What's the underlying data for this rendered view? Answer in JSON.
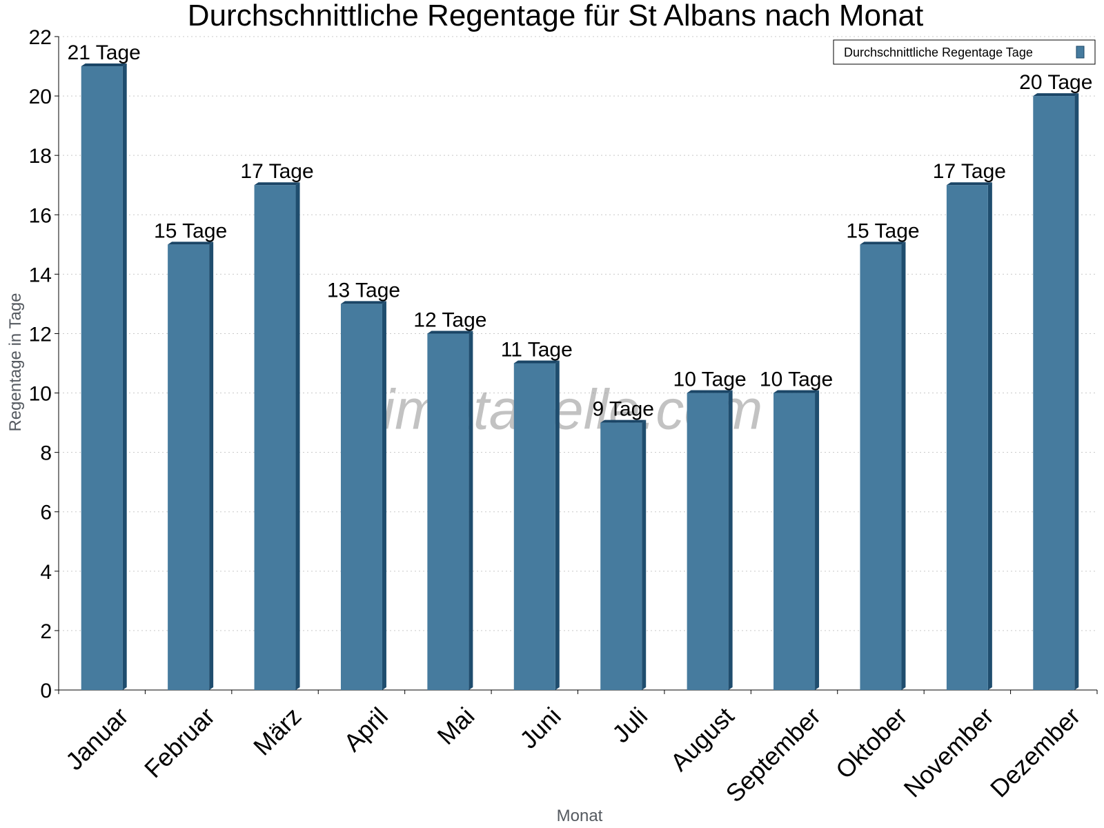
{
  "page": {
    "watermark": "klimatabelle.com"
  },
  "chart_data": {
    "type": "bar",
    "title": "Durchschnittliche Regentage für St Albans nach Monat",
    "xlabel": "Monat",
    "ylabel": "Regentage in Tage",
    "categories": [
      "Januar",
      "Februar",
      "März",
      "April",
      "Mai",
      "Juni",
      "Juli",
      "August",
      "September",
      "Oktober",
      "November",
      "Dezember"
    ],
    "series": [
      {
        "name": "Durchschnittliche Regentage Tage",
        "values": [
          21,
          15,
          17,
          13,
          12,
          11,
          9,
          10,
          10,
          15,
          17,
          20
        ],
        "data_labels": [
          "21 Tage",
          "15 Tage",
          "17 Tage",
          "13 Tage",
          "12 Tage",
          "11 Tage",
          "9 Tage",
          "10 Tage",
          "10 Tage",
          "15 Tage",
          "17 Tage",
          "20 Tage"
        ],
        "color": "#467b9e",
        "side_color": "#1f4d6e",
        "top_color": "#1a4566"
      }
    ],
    "ylim": [
      0,
      22
    ],
    "yticks": [
      0,
      2,
      4,
      6,
      8,
      10,
      12,
      14,
      16,
      18,
      20,
      22
    ],
    "grid": true,
    "legend_position": "top-right"
  }
}
